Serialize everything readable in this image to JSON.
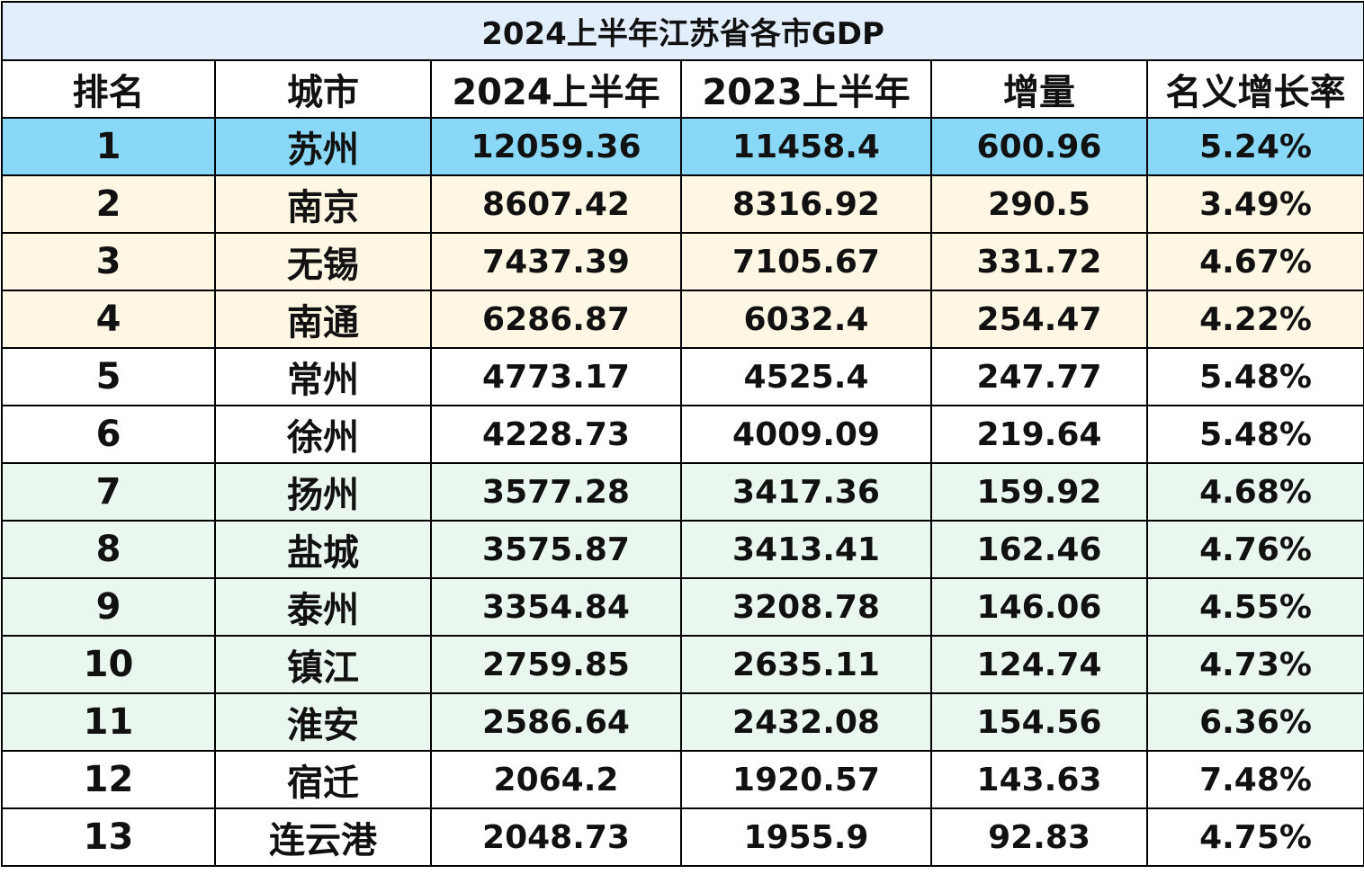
{
  "title": "2024上半年江苏省各市GDP",
  "columns": [
    "排名",
    "城市",
    "2024上半年",
    "2023上半年",
    "增量",
    "名义增长率"
  ],
  "rows": [
    {
      "rank": "1",
      "city": "苏州",
      "gdp_2024h1": "12059.36",
      "gdp_2023h1": "11458.4",
      "increase": "600.96",
      "growth": "5.24%",
      "band": "top"
    },
    {
      "rank": "2",
      "city": "南京",
      "gdp_2024h1": "8607.42",
      "gdp_2023h1": "8316.92",
      "increase": "290.5",
      "growth": "3.49%",
      "band": "cream"
    },
    {
      "rank": "3",
      "city": "无锡",
      "gdp_2024h1": "7437.39",
      "gdp_2023h1": "7105.67",
      "increase": "331.72",
      "growth": "4.67%",
      "band": "cream"
    },
    {
      "rank": "4",
      "city": "南通",
      "gdp_2024h1": "6286.87",
      "gdp_2023h1": "6032.4",
      "increase": "254.47",
      "growth": "4.22%",
      "band": "cream"
    },
    {
      "rank": "5",
      "city": "常州",
      "gdp_2024h1": "4773.17",
      "gdp_2023h1": "4525.4",
      "increase": "247.77",
      "growth": "5.48%",
      "band": "white"
    },
    {
      "rank": "6",
      "city": "徐州",
      "gdp_2024h1": "4228.73",
      "gdp_2023h1": "4009.09",
      "increase": "219.64",
      "growth": "5.48%",
      "band": "white"
    },
    {
      "rank": "7",
      "city": "扬州",
      "gdp_2024h1": "3577.28",
      "gdp_2023h1": "3417.36",
      "increase": "159.92",
      "growth": "4.68%",
      "band": "mint"
    },
    {
      "rank": "8",
      "city": "盐城",
      "gdp_2024h1": "3575.87",
      "gdp_2023h1": "3413.41",
      "increase": "162.46",
      "growth": "4.76%",
      "band": "mint"
    },
    {
      "rank": "9",
      "city": "泰州",
      "gdp_2024h1": "3354.84",
      "gdp_2023h1": "3208.78",
      "increase": "146.06",
      "growth": "4.55%",
      "band": "mint"
    },
    {
      "rank": "10",
      "city": "镇江",
      "gdp_2024h1": "2759.85",
      "gdp_2023h1": "2635.11",
      "increase": "124.74",
      "growth": "4.73%",
      "band": "mint"
    },
    {
      "rank": "11",
      "city": "淮安",
      "gdp_2024h1": "2586.64",
      "gdp_2023h1": "2432.08",
      "increase": "154.56",
      "growth": "6.36%",
      "band": "mint"
    },
    {
      "rank": "12",
      "city": "宿迁",
      "gdp_2024h1": "2064.2",
      "gdp_2023h1": "1920.57",
      "increase": "143.63",
      "growth": "7.48%",
      "band": "white"
    },
    {
      "rank": "13",
      "city": "连云港",
      "gdp_2024h1": "2048.73",
      "gdp_2023h1": "1955.9",
      "increase": "92.83",
      "growth": "4.75%",
      "band": "white"
    }
  ],
  "colors": {
    "title_bg": "#e3eefc",
    "top_row": "#8ad8f7",
    "cream_band": "#fff7e3",
    "mint_band": "#eaf7ef",
    "border": "#000000"
  }
}
